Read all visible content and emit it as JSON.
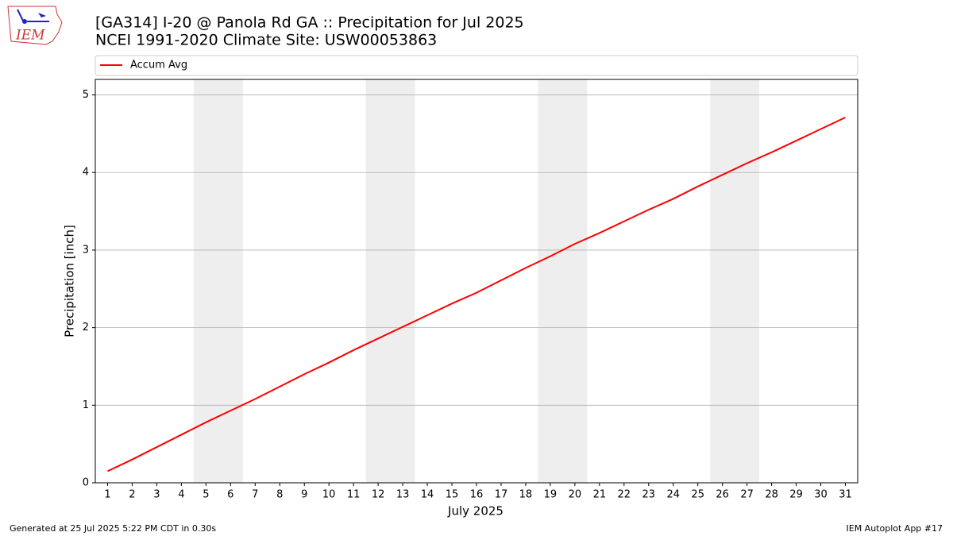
{
  "logo_text": "IEM",
  "footer_left": "Generated at 25 Jul 2025 5:22 PM CDT in 0.30s",
  "footer_right": "IEM Autoplot App #17",
  "chart_data": {
    "type": "line",
    "title": "[GA314] I-20 @ Panola Rd  GA :: Precipitation for Jul 2025",
    "subtitle": "NCEI 1991-2020 Climate Site: USW00053863",
    "x_label": "July 2025",
    "y_label": "Precipitation [inch]",
    "x": [
      1,
      2,
      3,
      4,
      5,
      6,
      7,
      8,
      9,
      10,
      11,
      12,
      13,
      14,
      15,
      16,
      17,
      18,
      19,
      20,
      21,
      22,
      23,
      24,
      25,
      26,
      27,
      28,
      29,
      30,
      31
    ],
    "series": [
      {
        "name": "Accum Avg",
        "color": "#ff0000",
        "values": [
          0.15,
          0.3,
          0.46,
          0.62,
          0.78,
          0.93,
          1.08,
          1.24,
          1.4,
          1.55,
          1.71,
          1.86,
          2.01,
          2.16,
          2.31,
          2.45,
          2.61,
          2.77,
          2.92,
          3.08,
          3.22,
          3.37,
          3.52,
          3.66,
          3.82,
          3.97,
          4.12,
          4.26,
          4.41,
          4.56,
          4.71
        ]
      }
    ],
    "shaded_ranges": [
      [
        4.5,
        6.5
      ],
      [
        11.5,
        13.5
      ],
      [
        18.5,
        20.5
      ],
      [
        25.5,
        27.5
      ]
    ],
    "shade_color": "#eeeeee",
    "xlim": [
      0.5,
      31.5
    ],
    "xticks": [
      1,
      2,
      3,
      4,
      5,
      6,
      7,
      8,
      9,
      10,
      11,
      12,
      13,
      14,
      15,
      16,
      17,
      18,
      19,
      20,
      21,
      22,
      23,
      24,
      25,
      26,
      27,
      28,
      29,
      30,
      31
    ],
    "ylim": [
      0,
      5.2
    ],
    "yticks": [
      0,
      1,
      2,
      3,
      4,
      5
    ],
    "grid": true,
    "legend": "top"
  }
}
